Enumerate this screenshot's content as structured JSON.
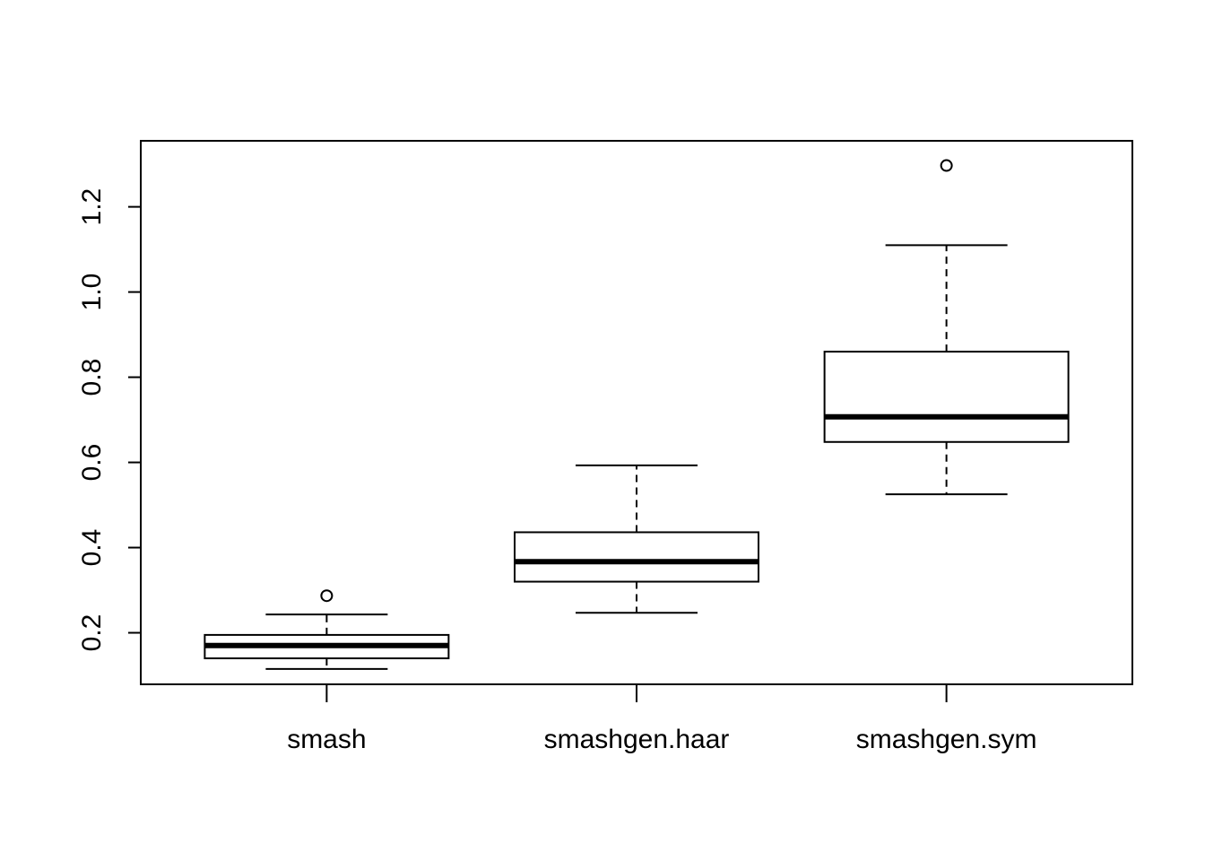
{
  "chart_data": {
    "type": "boxplot",
    "title": "",
    "xlabel": "",
    "ylabel": "",
    "categories": [
      "smash",
      "smashgen.haar",
      "smashgen.sym"
    ],
    "boxes": [
      {
        "category": "smash",
        "whisker_low": 0.115,
        "q1": 0.14,
        "median": 0.17,
        "q3": 0.195,
        "whisker_high": 0.243,
        "outliers": [
          0.287
        ]
      },
      {
        "category": "smashgen.haar",
        "whisker_low": 0.247,
        "q1": 0.32,
        "median": 0.367,
        "q3": 0.436,
        "whisker_high": 0.593,
        "outliers": []
      },
      {
        "category": "smashgen.sym",
        "whisker_low": 0.525,
        "q1": 0.648,
        "median": 0.707,
        "q3": 0.86,
        "whisker_high": 1.11,
        "outliers": [
          1.297
        ]
      }
    ],
    "yticks": [
      0.2,
      0.4,
      0.6,
      0.8,
      1.0,
      1.2
    ],
    "ytick_labels": [
      "0.2",
      "0.4",
      "0.6",
      "0.8",
      "1.0",
      "1.2"
    ],
    "ylim": [
      0.079,
      1.355
    ],
    "grid": false,
    "legend": "none",
    "colors": {
      "stroke": "#000000",
      "fill": "#ffffff"
    }
  }
}
